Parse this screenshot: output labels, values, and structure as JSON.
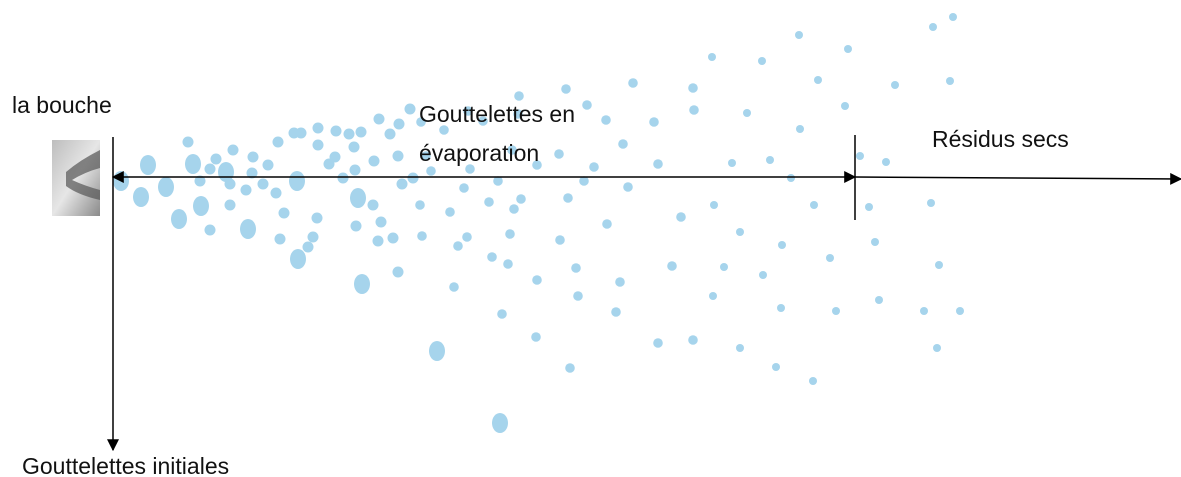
{
  "labels": {
    "mouth": "la bouche",
    "evaporating": [
      "Gouttelettes en",
      "évaporation"
    ],
    "residues": "Résidus secs",
    "initial": "Gouttelettes initiales"
  }
}
